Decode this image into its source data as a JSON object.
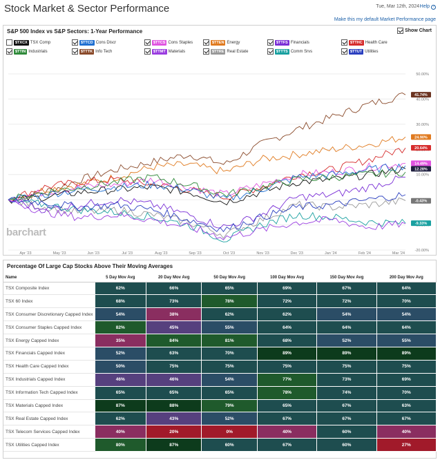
{
  "header": {
    "title": "Stock Market & Sector Performance",
    "date": "Tue, Mar 12th, 2024",
    "help": "Help",
    "default_link": "Make this my default Market Performance page"
  },
  "panel_chart": {
    "title": "S&P 500 Index vs S&P Sectors: 1-Year Performance",
    "show_chart_label": "Show Chart",
    "watermark": "barchart"
  },
  "legend": [
    {
      "symbol": "$TXCX",
      "name": "TSX Comp",
      "color": "#111111",
      "checked": false
    },
    {
      "symbol": "$TTCD",
      "name": "Cons Discr",
      "color": "#1f6fd1",
      "checked": true
    },
    {
      "symbol": "$TTCS",
      "name": "Cons Staples",
      "color": "#e054e0",
      "checked": true
    },
    {
      "symbol": "$TTEN",
      "name": "Energy",
      "color": "#e07a1f",
      "checked": true
    },
    {
      "symbol": "$TTFS",
      "name": "Financials",
      "color": "#7a2fd6",
      "checked": true
    },
    {
      "symbol": "$TTHC",
      "name": "Health Care",
      "color": "#d62c2c",
      "checked": true
    },
    {
      "symbol": "$TTIN",
      "name": "Industrials",
      "color": "#2f8a3a",
      "checked": true
    },
    {
      "symbol": "$TTTK",
      "name": "Info Tech",
      "color": "#8a4a2a",
      "checked": true
    },
    {
      "symbol": "$TTMT",
      "name": "Materials",
      "color": "#9a3de0",
      "checked": true
    },
    {
      "symbol": "$TTRE",
      "name": "Real Estate",
      "color": "#999999",
      "checked": true
    },
    {
      "symbol": "$TTTS",
      "name": "Comm Srvs",
      "color": "#19a0a0",
      "checked": true
    },
    {
      "symbol": "$TTUT",
      "name": "Utilities",
      "color": "#2a3fbf",
      "checked": true
    }
  ],
  "chart_data": {
    "type": "line",
    "x": [
      "Apr '23",
      "May '23",
      "Jun '23",
      "Jul '23",
      "Aug '23",
      "Sep '23",
      "Oct '23",
      "Nov '23",
      "Dec '23",
      "Jan '24",
      "Feb '24",
      "Mar '24"
    ],
    "yticks": [
      "50.00%",
      "40.00%",
      "30.00%",
      "20.00%",
      "10.00%",
      "0.00%",
      "-10.00%",
      "-20.00%"
    ],
    "ylim": [
      -20,
      50
    ],
    "end_labels": [
      {
        "text": "41.74%",
        "value": 41.74,
        "color": "#6b3320"
      },
      {
        "text": "24.90%",
        "value": 24.9,
        "color": "#e07a1f"
      },
      {
        "text": "20.64%",
        "value": 20.64,
        "color": "#d62c2c"
      },
      {
        "text": "14.49%",
        "value": 14.49,
        "color": "#e054e0"
      },
      {
        "text": "12.28%",
        "value": 12.28,
        "color": "#1f1f3f"
      },
      {
        "text": "-0.43%",
        "value": -0.43,
        "color": "#777777"
      },
      {
        "text": "-9.33%",
        "value": -9.33,
        "color": "#19a0a0"
      }
    ],
    "series": [
      {
        "color": "#8a4a2a",
        "values": [
          0,
          3,
          8,
          12,
          15,
          18,
          14,
          22,
          28,
          33,
          38,
          41.7
        ]
      },
      {
        "color": "#e07a1f",
        "values": [
          0,
          4,
          6,
          9,
          13,
          14,
          11,
          16,
          18,
          20,
          22,
          24.9
        ]
      },
      {
        "color": "#d62c2c",
        "values": [
          0,
          5,
          7,
          8,
          6,
          4,
          1,
          5,
          10,
          12,
          16,
          20.6
        ]
      },
      {
        "color": "#e054e0",
        "values": [
          0,
          3,
          5,
          6,
          8,
          5,
          2,
          6,
          10,
          11,
          13,
          14.5
        ]
      },
      {
        "color": "#111111",
        "values": [
          0,
          1,
          3,
          4,
          5,
          3,
          -1,
          3,
          7,
          8,
          10,
          12.3
        ]
      },
      {
        "color": "#1f6fd1",
        "values": [
          0,
          2,
          4,
          5,
          6,
          4,
          0,
          4,
          9,
          10,
          12,
          13.5
        ]
      },
      {
        "color": "#2f8a3a",
        "values": [
          0,
          3,
          5,
          7,
          9,
          6,
          2,
          5,
          8,
          9,
          10,
          11
        ]
      },
      {
        "color": "#999999",
        "values": [
          0,
          -3,
          -5,
          -4,
          -6,
          -9,
          -14,
          -8,
          -2,
          -3,
          -2,
          -0.4
        ]
      },
      {
        "color": "#7a2fd6",
        "values": [
          0,
          -4,
          -2,
          0,
          -2,
          -6,
          -11,
          -6,
          1,
          2,
          5,
          9
        ]
      },
      {
        "color": "#19a0a0",
        "values": [
          0,
          -2,
          -4,
          -5,
          -7,
          -10,
          -16,
          -10,
          -6,
          -7,
          -9,
          -9.3
        ]
      },
      {
        "color": "#9a3de0",
        "values": [
          0,
          -5,
          -7,
          -6,
          -8,
          -11,
          -15,
          -12,
          -9,
          -8,
          -11,
          -9.5
        ]
      },
      {
        "color": "#2a3fbf",
        "values": [
          0,
          -1,
          -3,
          -2,
          -4,
          -8,
          -12,
          -7,
          -3,
          -2,
          0,
          2
        ]
      }
    ]
  },
  "table": {
    "title": "Percentage Of Large Cap Stocks Above Their Moving Averages",
    "headers": [
      "Name",
      "5 Day Mov Avg",
      "20 Day Mov Avg",
      "50 Day Mov Avg",
      "100 Day Mov Avg",
      "150 Day Mov Avg",
      "200 Day Mov Avg"
    ],
    "rows": [
      {
        "name": "TSX Composite Index",
        "values": [
          "62%",
          "66%",
          "65%",
          "69%",
          "67%",
          "64%"
        ]
      },
      {
        "name": "TSX 60 Index",
        "values": [
          "68%",
          "73%",
          "78%",
          "72%",
          "72%",
          "70%"
        ]
      },
      {
        "name": "TSX Consumer Discretionary Capped Index",
        "values": [
          "54%",
          "38%",
          "62%",
          "62%",
          "54%",
          "54%"
        ]
      },
      {
        "name": "TSX Consumer Staples Capped Index",
        "values": [
          "82%",
          "45%",
          "55%",
          "64%",
          "64%",
          "64%"
        ]
      },
      {
        "name": "TSX Energy Capped Index",
        "values": [
          "35%",
          "84%",
          "81%",
          "68%",
          "52%",
          "55%"
        ]
      },
      {
        "name": "TSX Financials Capped Index",
        "values": [
          "52%",
          "63%",
          "70%",
          "89%",
          "89%",
          "89%"
        ]
      },
      {
        "name": "TSX Health Care Capped Index",
        "values": [
          "50%",
          "75%",
          "75%",
          "75%",
          "75%",
          "75%"
        ]
      },
      {
        "name": "TSX Industrials Capped Index",
        "values": [
          "46%",
          "46%",
          "54%",
          "77%",
          "73%",
          "69%"
        ]
      },
      {
        "name": "TSX Information Tech Capped Index",
        "values": [
          "65%",
          "65%",
          "65%",
          "78%",
          "74%",
          "70%"
        ]
      },
      {
        "name": "TSX Materials Capped Index",
        "values": [
          "87%",
          "88%",
          "79%",
          "65%",
          "67%",
          "63%"
        ]
      },
      {
        "name": "TSX Real Estate Capped Index",
        "values": [
          "62%",
          "43%",
          "52%",
          "67%",
          "67%",
          "67%"
        ]
      },
      {
        "name": "TSX Telecom Services Capped Index",
        "values": [
          "40%",
          "20%",
          "0%",
          "40%",
          "60%",
          "40%"
        ]
      },
      {
        "name": "TSX Utilities Capped Index",
        "values": [
          "80%",
          "87%",
          "60%",
          "67%",
          "60%",
          "27%"
        ]
      }
    ]
  }
}
